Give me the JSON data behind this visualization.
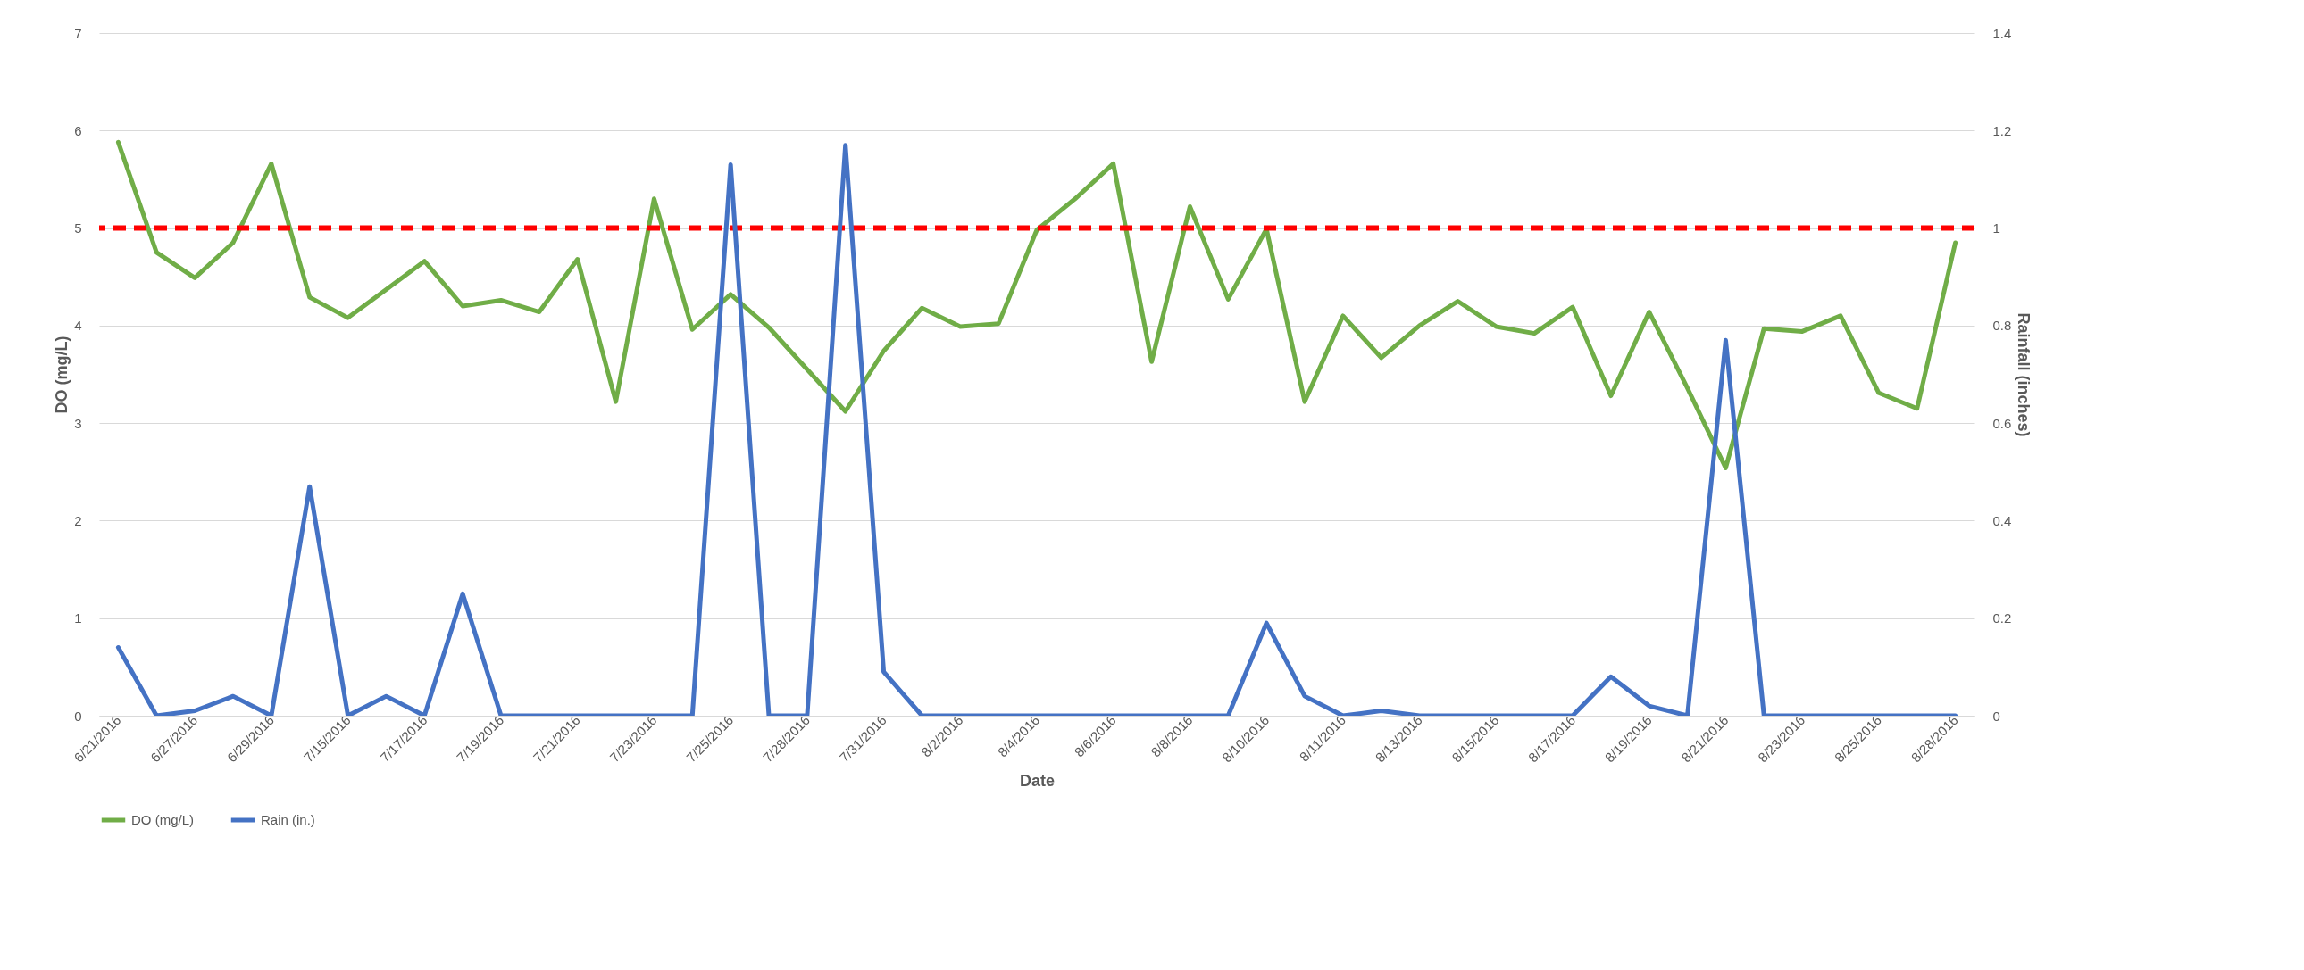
{
  "chart_data": {
    "type": "line",
    "xlabel": "Date",
    "ylabel": "DO (mg/L)",
    "y2label": "Rainfall (inches)",
    "categories": [
      "6/21/2016",
      null,
      "6/27/2016",
      null,
      "6/29/2016",
      null,
      "7/15/2016",
      null,
      "7/17/2016",
      null,
      "7/19/2016",
      null,
      "7/21/2016",
      null,
      "7/23/2016",
      null,
      "7/25/2016",
      null,
      "7/28/2016",
      null,
      "7/31/2016",
      null,
      "8/2/2016",
      null,
      "8/4/2016",
      null,
      "8/6/2016",
      null,
      "8/8/2016",
      null,
      "8/10/2016",
      null,
      "8/11/2016",
      null,
      "8/13/2016",
      null,
      "8/15/2016",
      null,
      "8/17/2016",
      null,
      "8/19/2016",
      null,
      "8/21/2016",
      null,
      "8/23/2016",
      null,
      "8/25/2016",
      null,
      "8/28/2016"
    ],
    "ylim": [
      0,
      7
    ],
    "yticks": [
      0,
      1,
      2,
      3,
      4,
      5,
      6,
      7
    ],
    "y2lim": [
      0,
      1.4
    ],
    "y2ticks": [
      0,
      0.2,
      0.4,
      0.6,
      0.8,
      1,
      1.2,
      1.4
    ],
    "series": [
      {
        "name": "DO (mg/L)",
        "color": "#70ad47",
        "values": [
          5.88,
          4.75,
          4.49,
          4.85,
          5.66,
          4.29,
          4.08,
          4.37,
          4.66,
          4.2,
          4.26,
          4.14,
          4.68,
          3.22,
          5.3,
          3.96,
          4.32,
          3.98,
          3.55,
          3.12,
          3.74,
          4.18,
          3.99,
          4.02,
          4.98,
          5.3,
          5.66,
          3.63,
          5.22,
          4.27,
          4.99,
          3.22,
          4.1,
          3.67,
          4.0,
          4.25,
          3.99,
          3.92,
          4.19,
          3.28,
          4.14,
          3.36,
          2.54,
          3.97,
          3.94,
          4.1,
          3.31,
          3.15,
          4.85
        ]
      },
      {
        "name": "Rain (in.)",
        "color": "#4472c4",
        "axis": "y2",
        "values": [
          0.14,
          0,
          0.01,
          0.04,
          0,
          0.47,
          0,
          0.04,
          0,
          0.25,
          0,
          0,
          0,
          0,
          0,
          0,
          1.13,
          0,
          0,
          1.17,
          0.09,
          0,
          0,
          0,
          0,
          0,
          0,
          0,
          0,
          0,
          0.19,
          0.04,
          0,
          0.01,
          0,
          0,
          0,
          0,
          0,
          0.08,
          0.02,
          0,
          0.77,
          0,
          0,
          0,
          0,
          0,
          0
        ]
      }
    ],
    "ref_lines": [
      {
        "axis": "y",
        "value": 5,
        "color": "#ff0000",
        "line_style": "dashed"
      }
    ],
    "grid": "y",
    "legend": "bottom"
  }
}
